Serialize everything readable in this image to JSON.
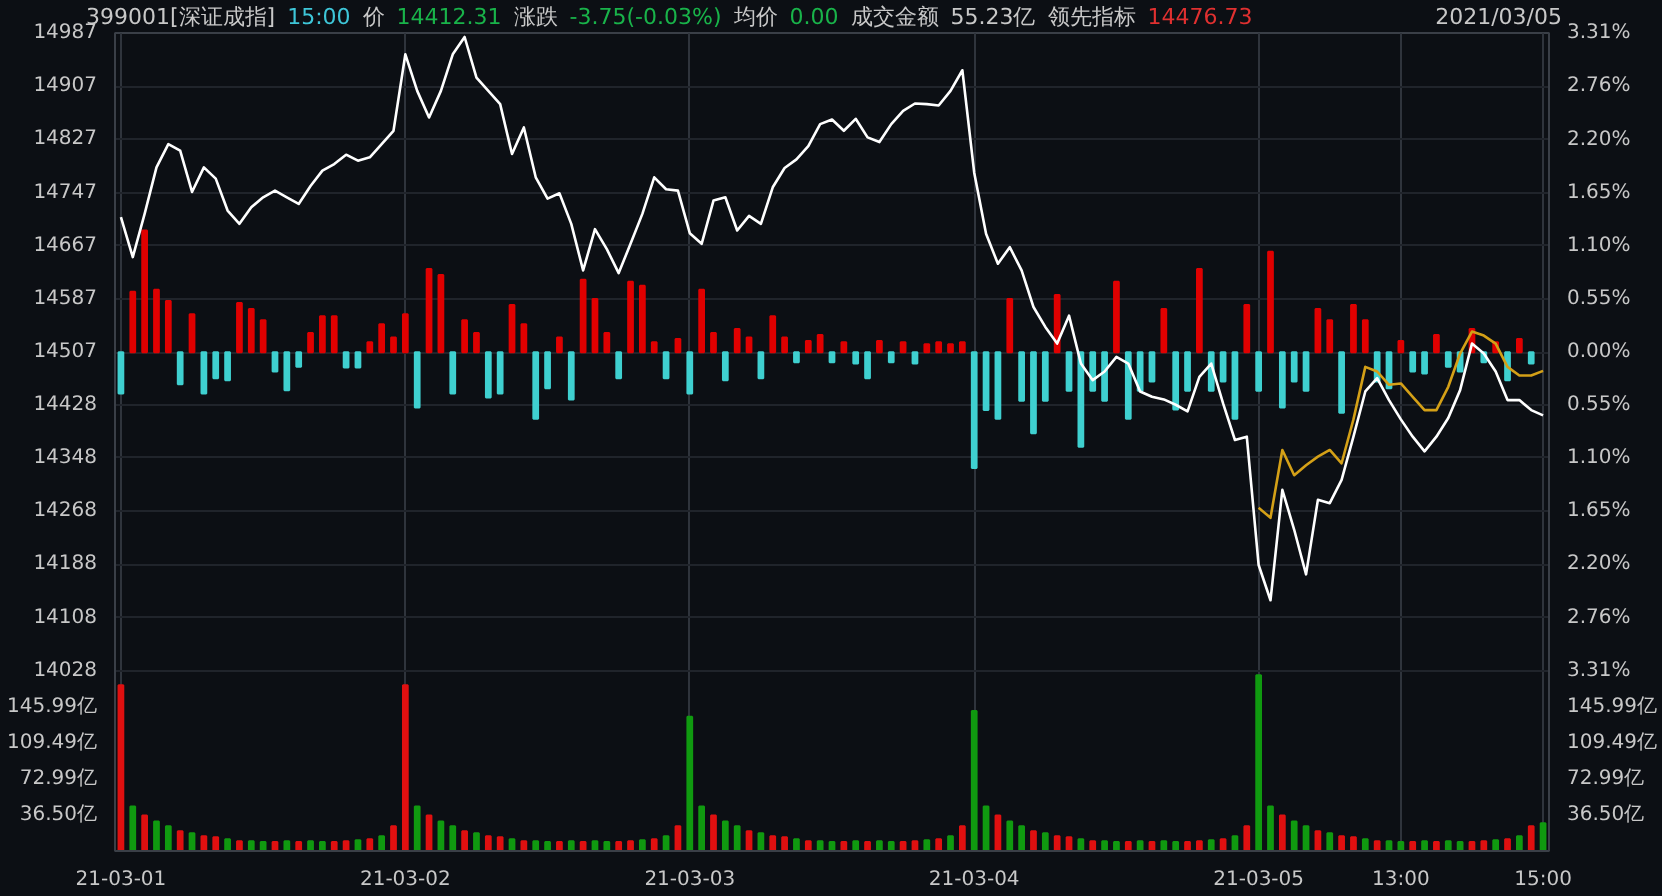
{
  "chart_data": {
    "type": "line",
    "annotations": [
      "399001[深证成指]",
      "15:00",
      "价",
      "14412.31",
      "涨跌",
      "-3.75(-0.03%)",
      "均价",
      "0.00",
      "成交金额",
      "55.23亿",
      "领先指标",
      "14476.73",
      "2021/03/05"
    ],
    "categories": [
      "21-03-01",
      null,
      null,
      null,
      null,
      null,
      null,
      null,
      null,
      null,
      null,
      null,
      null,
      null,
      null,
      null,
      null,
      null,
      null,
      null,
      null,
      null,
      null,
      null,
      "21-03-02",
      null,
      null,
      null,
      null,
      null,
      null,
      null,
      null,
      null,
      null,
      null,
      null,
      null,
      null,
      null,
      null,
      null,
      null,
      null,
      null,
      null,
      null,
      null,
      "21-03-03",
      null,
      null,
      null,
      null,
      null,
      null,
      null,
      null,
      null,
      null,
      null,
      null,
      null,
      null,
      null,
      null,
      null,
      null,
      null,
      null,
      null,
      null,
      null,
      "21-03-04",
      null,
      null,
      null,
      null,
      null,
      null,
      null,
      null,
      null,
      null,
      null,
      null,
      null,
      null,
      null,
      null,
      null,
      null,
      null,
      null,
      null,
      null,
      null,
      "21-03-05",
      null,
      null,
      null,
      null,
      null,
      null,
      null,
      null,
      null,
      null,
      null,
      "13:00",
      null,
      null,
      null,
      null,
      null,
      null,
      null,
      null,
      null,
      null,
      null,
      "15:00"
    ],
    "ylim": [
      13757,
      14987
    ],
    "yticks": [
      14028,
      14108,
      14188,
      14268,
      14348,
      14428,
      14507,
      14587,
      14667,
      14747,
      14827,
      14907,
      14987
    ],
    "y2lim": [
      -5.18,
      3.31
    ],
    "y2ticks": [
      {
        "value": -3.31,
        "label": "3.31%"
      },
      {
        "value": -2.76,
        "label": "2.76%"
      },
      {
        "value": -2.2,
        "label": "2.20%"
      },
      {
        "value": -1.65,
        "label": "1.65%"
      },
      {
        "value": -1.1,
        "label": "1.10%"
      },
      {
        "value": -0.55,
        "label": "0.55%"
      },
      {
        "value": 0,
        "label": "0.00%"
      },
      {
        "value": 0.55,
        "label": "0.55%"
      },
      {
        "value": 1.1,
        "label": "1.10%"
      },
      {
        "value": 1.65,
        "label": "1.65%"
      },
      {
        "value": 2.2,
        "label": "2.20%"
      },
      {
        "value": 2.76,
        "label": "2.76%"
      },
      {
        "value": 3.31,
        "label": "3.31%"
      }
    ],
    "y3lim": [
      0,
      829
    ],
    "y3ticks": [
      {
        "value": 36.5,
        "label": "36.50亿"
      },
      {
        "value": 72.99,
        "label": "72.99亿"
      },
      {
        "value": 109.49,
        "label": "109.49亿"
      },
      {
        "value": 145.99,
        "label": "145.99亿"
      }
    ],
    "grid": true,
    "series": [
      {
        "type": "bar",
        "color": "#e00000",
        "base": [
          null,
          14507,
          14507,
          14507,
          14507,
          null,
          14507,
          null,
          null,
          null,
          14507,
          14507,
          14507,
          null,
          null,
          null,
          14507,
          14507,
          14507,
          null,
          null,
          14507,
          14507,
          14507,
          14507,
          null,
          14507,
          14507,
          null,
          14507,
          14507,
          null,
          null,
          14507,
          14507,
          null,
          null,
          14507,
          null,
          14507,
          14507,
          14507,
          null,
          14507,
          14507,
          14507,
          null,
          14507,
          null,
          14507,
          14507,
          null,
          14507,
          14507,
          null,
          14507,
          14507,
          null,
          14507,
          14507,
          null,
          14507,
          null,
          null,
          14507,
          null,
          14507,
          null,
          14507,
          14507,
          14507,
          14507,
          null,
          null,
          null,
          14507,
          null,
          null,
          null,
          14507,
          null,
          null,
          null,
          null,
          14507,
          null,
          null,
          null,
          14507,
          null,
          null,
          14507,
          null,
          null,
          null,
          14507,
          null,
          14507,
          null,
          null,
          null,
          14507,
          14507,
          null,
          14507,
          14507,
          null,
          null,
          14507,
          null,
          null,
          14507,
          null,
          null,
          14507,
          null,
          14507,
          null,
          14507,
          null,
          null
        ],
        "values": [
          null,
          91,
          183,
          94,
          77,
          null,
          57,
          null,
          null,
          null,
          74,
          65,
          48,
          null,
          null,
          null,
          29,
          54,
          54,
          null,
          null,
          15,
          42,
          22,
          57,
          null,
          125,
          116,
          null,
          48,
          29,
          null,
          null,
          71,
          42,
          null,
          null,
          22,
          null,
          109,
          80,
          29,
          null,
          106,
          100,
          15,
          null,
          20,
          null,
          94,
          29,
          null,
          35,
          22,
          null,
          54,
          22,
          null,
          17,
          26,
          null,
          15,
          null,
          null,
          17,
          null,
          15,
          null,
          12,
          15,
          12,
          15,
          null,
          null,
          null,
          80,
          null,
          null,
          null,
          86,
          null,
          null,
          null,
          null,
          106,
          null,
          null,
          null,
          65,
          null,
          null,
          125,
          null,
          null,
          null,
          71,
          null,
          151,
          null,
          null,
          null,
          65,
          48,
          null,
          71,
          48,
          null,
          null,
          17,
          null,
          null,
          26,
          null,
          null,
          35,
          null,
          15,
          null,
          20,
          null,
          null
        ]
      },
      {
        "type": "bar",
        "color": "#3fd0d0",
        "base": [
          14507,
          null,
          null,
          null,
          null,
          14507,
          null,
          14507,
          14507,
          14507,
          null,
          null,
          null,
          14507,
          14507,
          14507,
          null,
          null,
          null,
          14507,
          14507,
          null,
          null,
          null,
          null,
          14507,
          null,
          null,
          14507,
          null,
          null,
          14507,
          14507,
          null,
          null,
          14507,
          14507,
          null,
          14507,
          null,
          null,
          null,
          14507,
          null,
          null,
          null,
          14507,
          null,
          14507,
          null,
          null,
          14507,
          null,
          null,
          14507,
          null,
          null,
          14507,
          null,
          null,
          14507,
          null,
          14507,
          14507,
          null,
          14507,
          null,
          14507,
          null,
          null,
          null,
          null,
          14507,
          14507,
          14507,
          null,
          14507,
          14507,
          14507,
          null,
          14507,
          14507,
          14507,
          14507,
          null,
          14507,
          14507,
          14507,
          null,
          14507,
          14507,
          null,
          14507,
          14507,
          14507,
          null,
          14507,
          null,
          14507,
          14507,
          14507,
          null,
          null,
          14507,
          null,
          null,
          14507,
          14507,
          null,
          14507,
          14507,
          null,
          14507,
          14507,
          null,
          14507,
          null,
          14507,
          null,
          14507,
          null
        ],
        "values": [
          -62,
          null,
          null,
          null,
          null,
          -48,
          null,
          -62,
          -39,
          -42,
          null,
          null,
          null,
          -29,
          -57,
          -22,
          null,
          null,
          null,
          -23,
          -23,
          null,
          null,
          null,
          null,
          -83,
          null,
          null,
          -62,
          null,
          null,
          -68,
          -62,
          null,
          null,
          -100,
          -54,
          null,
          -71,
          null,
          null,
          null,
          -39,
          null,
          null,
          null,
          -39,
          null,
          -62,
          null,
          null,
          -42,
          null,
          null,
          -39,
          null,
          null,
          -15,
          null,
          null,
          -15,
          null,
          -17,
          -39,
          null,
          -15,
          null,
          -17,
          null,
          null,
          null,
          null,
          -174,
          -87,
          -100,
          null,
          -73,
          -122,
          -73,
          null,
          -58,
          -142,
          -58,
          -73,
          null,
          -100,
          -58,
          -44,
          null,
          -86,
          -58,
          null,
          -58,
          -44,
          -100,
          null,
          -58,
          null,
          -83,
          -44,
          -58,
          null,
          null,
          -91,
          null,
          null,
          -44,
          -54,
          null,
          -29,
          -32,
          null,
          -22,
          -29,
          null,
          -15,
          null,
          -42,
          null,
          -17,
          null
        ]
      },
      {
        "color": "#ffffff",
        "values": [
          14710,
          14650,
          14715,
          14785,
          14820,
          14810,
          14748,
          14785,
          14768,
          14720,
          14700,
          14725,
          14740,
          14750,
          14740,
          14730,
          14757,
          14780,
          14790,
          14804,
          14795,
          14800,
          14820,
          14840,
          14955,
          14900,
          14860,
          14900,
          14955,
          14981,
          14920,
          14900,
          14880,
          14805,
          14845,
          14770,
          14738,
          14746,
          14700,
          14630,
          14692,
          14662,
          14626,
          14670,
          14715,
          14770,
          14752,
          14750,
          14686,
          14670,
          14735,
          14740,
          14690,
          14712,
          14700,
          14755,
          14784,
          14797,
          14817,
          14850,
          14857,
          14840,
          14858,
          14830,
          14823,
          14850,
          14870,
          14881,
          14880,
          14878,
          14900,
          14931,
          14777,
          14685,
          14640,
          14665,
          14630,
          14575,
          14545,
          14520,
          14562,
          14490,
          14465,
          14478,
          14500,
          14490,
          14448,
          14440,
          14436,
          14428,
          14418,
          14470,
          14490,
          14430,
          14375,
          14380,
          14187,
          14134,
          14300,
          14240,
          14173,
          14285,
          14280,
          14315,
          14380,
          14448,
          14468,
          14435,
          14406,
          14380,
          14358,
          14380,
          14408,
          14450,
          14520,
          14505,
          14478,
          14435,
          14435,
          14420,
          14412
        ]
      },
      {
        "color": "#d4a017",
        "values": [
          null,
          null,
          null,
          null,
          null,
          null,
          null,
          null,
          null,
          null,
          null,
          null,
          null,
          null,
          null,
          null,
          null,
          null,
          null,
          null,
          null,
          null,
          null,
          null,
          null,
          null,
          null,
          null,
          null,
          null,
          null,
          null,
          null,
          null,
          null,
          null,
          null,
          null,
          null,
          null,
          null,
          null,
          null,
          null,
          null,
          null,
          null,
          null,
          null,
          null,
          null,
          null,
          null,
          null,
          null,
          null,
          null,
          null,
          null,
          null,
          null,
          null,
          null,
          null,
          null,
          null,
          null,
          null,
          null,
          null,
          null,
          null,
          null,
          null,
          null,
          null,
          null,
          null,
          null,
          null,
          null,
          null,
          null,
          null,
          null,
          null,
          null,
          null,
          null,
          null,
          null,
          null,
          null,
          null,
          null,
          null,
          14273,
          14258,
          14360,
          14322,
          14337,
          14350,
          14360,
          14340,
          14406,
          14485,
          14478,
          14458,
          14460,
          14440,
          14420,
          14420,
          14455,
          14505,
          14538,
          14532,
          14520,
          14485,
          14472,
          14472,
          14479
        ]
      },
      {
        "type": "bar",
        "axis": "y3",
        "values": [
          168,
          45,
          36,
          30,
          25,
          20,
          18,
          15,
          14,
          12,
          10,
          10,
          9,
          9,
          10,
          9,
          10,
          9,
          9,
          10,
          11,
          12,
          15,
          25,
          168,
          45,
          36,
          30,
          25,
          20,
          18,
          15,
          14,
          12,
          10,
          10,
          9,
          9,
          10,
          9,
          10,
          9,
          9,
          10,
          11,
          12,
          15,
          25,
          136,
          45,
          36,
          30,
          25,
          20,
          18,
          15,
          14,
          12,
          10,
          10,
          9,
          9,
          10,
          9,
          10,
          9,
          9,
          10,
          11,
          12,
          15,
          25,
          142,
          45,
          36,
          30,
          25,
          20,
          18,
          15,
          14,
          12,
          10,
          10,
          9,
          9,
          10,
          9,
          10,
          9,
          9,
          10,
          11,
          12,
          15,
          25,
          178,
          45,
          36,
          30,
          25,
          20,
          18,
          15,
          14,
          12,
          10,
          10,
          9,
          9,
          10,
          9,
          10,
          9,
          9,
          10,
          11,
          12,
          15,
          25,
          28
        ],
        "colors": [
          "#e01010",
          "#109a10",
          "#e01010",
          "#109a10",
          "#109a10",
          "#e01010",
          "#109a10",
          "#e01010",
          "#e01010",
          "#109a10",
          "#e01010",
          "#109a10",
          "#109a10",
          "#e01010",
          "#109a10",
          "#e01010",
          "#109a10",
          "#109a10",
          "#e01010",
          "#e01010",
          "#109a10",
          "#e01010",
          "#109a10",
          "#e01010",
          "#e01010",
          "#109a10",
          "#e01010",
          "#109a10",
          "#109a10",
          "#e01010",
          "#109a10",
          "#e01010",
          "#e01010",
          "#109a10",
          "#e01010",
          "#109a10",
          "#109a10",
          "#e01010",
          "#109a10",
          "#e01010",
          "#109a10",
          "#109a10",
          "#e01010",
          "#e01010",
          "#109a10",
          "#e01010",
          "#109a10",
          "#e01010",
          "#109a10",
          "#109a10",
          "#e01010",
          "#109a10",
          "#109a10",
          "#e01010",
          "#109a10",
          "#e01010",
          "#e01010",
          "#109a10",
          "#e01010",
          "#109a10",
          "#109a10",
          "#e01010",
          "#109a10",
          "#e01010",
          "#109a10",
          "#109a10",
          "#e01010",
          "#e01010",
          "#109a10",
          "#e01010",
          "#109a10",
          "#e01010",
          "#109a10",
          "#109a10",
          "#e01010",
          "#109a10",
          "#109a10",
          "#e01010",
          "#109a10",
          "#e01010",
          "#e01010",
          "#109a10",
          "#e01010",
          "#109a10",
          "#109a10",
          "#e01010",
          "#109a10",
          "#e01010",
          "#109a10",
          "#109a10",
          "#e01010",
          "#e01010",
          "#109a10",
          "#e01010",
          "#109a10",
          "#e01010",
          "#109a10",
          "#109a10",
          "#e01010",
          "#109a10",
          "#109a10",
          "#e01010",
          "#109a10",
          "#e01010",
          "#e01010",
          "#109a10",
          "#e01010",
          "#109a10",
          "#109a10",
          "#e01010",
          "#109a10",
          "#e01010",
          "#109a10",
          "#109a10",
          "#e01010",
          "#e01010",
          "#109a10",
          "#e01010",
          "#109a10",
          "#e01010",
          "#109a10"
        ]
      }
    ]
  }
}
